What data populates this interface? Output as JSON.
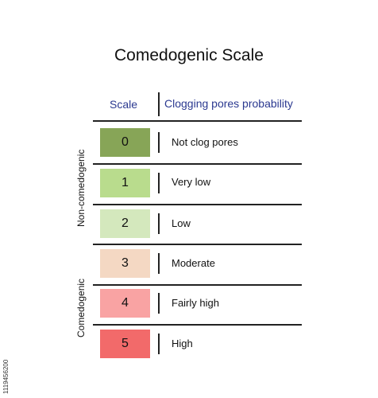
{
  "title": "Comedogenic Scale",
  "headers": {
    "scale": "Scale",
    "probability": "Clogging pores probability"
  },
  "groups": {
    "non_comedogenic": "Non-comedogenic",
    "comedogenic": "Comedogenic"
  },
  "rows": [
    {
      "value": "0",
      "description": "Not clog pores",
      "color": "#87a557"
    },
    {
      "value": "1",
      "description": "Very low",
      "color": "#b9dc8d"
    },
    {
      "value": "2",
      "description": "Low",
      "color": "#d4e8bd"
    },
    {
      "value": "3",
      "description": "Moderate",
      "color": "#f4d8c3"
    },
    {
      "value": "4",
      "description": "Fairly high",
      "color": "#f9a3a3"
    },
    {
      "value": "5",
      "description": "High",
      "color": "#f26a6a"
    }
  ],
  "colors": {
    "header_text": "#2b3990",
    "line": "#222222"
  },
  "watermark_id": "1119456200"
}
